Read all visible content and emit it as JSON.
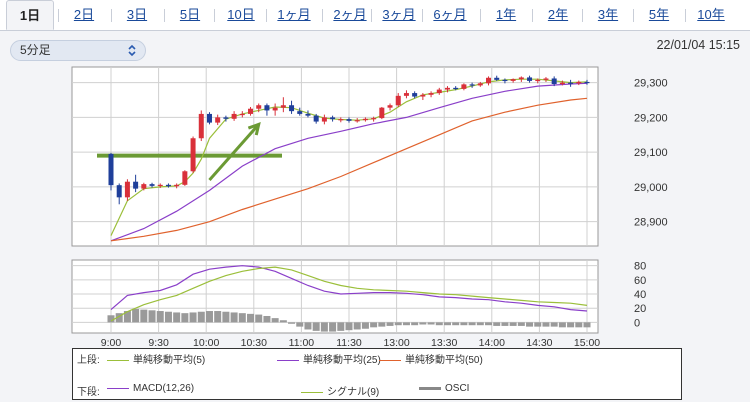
{
  "tabs": [
    {
      "label": "1日",
      "active": true
    },
    {
      "label": "2日"
    },
    {
      "label": "3日"
    },
    {
      "label": "5日"
    },
    {
      "label": "10日"
    },
    {
      "label": "1ヶ月"
    },
    {
      "label": "2ヶ月"
    },
    {
      "label": "3ヶ月"
    },
    {
      "label": "6ヶ月"
    },
    {
      "label": "1年"
    },
    {
      "label": "2年"
    },
    {
      "label": "3年"
    },
    {
      "label": "5年"
    },
    {
      "label": "10年"
    }
  ],
  "interval_select": {
    "value": "5分足",
    "icon": "updown-chevron-icon"
  },
  "timestamp": "22/01/04 15:15",
  "legend": {
    "upper_label": "上段:",
    "lower_label": "下段:",
    "upper_items": [
      {
        "name": "単純移動平均(5)",
        "color": "#9bbf3a"
      },
      {
        "name": "単純移動平均(25)",
        "color": "#8a3fc9"
      },
      {
        "name": "単純移動平均(50)",
        "color": "#e0622d"
      }
    ],
    "lower_items": [
      {
        "name": "MACD(12,26)",
        "color": "#8a3fc9"
      },
      {
        "name": "シグナル(9)",
        "color": "#9bbf3a"
      },
      {
        "name": "OSCI",
        "color": "#888888"
      }
    ]
  },
  "colors": {
    "up": "#d9303a",
    "down": "#1f3f9a",
    "grid": "#cccccc",
    "annotation": "#6b9a34"
  },
  "chart_data": [
    {
      "type": "candlestick",
      "x_ticks": [
        "9:00",
        "9:30",
        "10:00",
        "10:30",
        "11:00",
        "11:30",
        "13:00",
        "13:30",
        "14:00",
        "14:30",
        "15:00"
      ],
      "y_ticks": [
        28900,
        29000,
        29100,
        29200,
        29300
      ],
      "ylim": [
        28830,
        29345
      ],
      "candles": [
        [
          29095,
          29098,
          28990,
          29005
        ],
        [
          29005,
          29010,
          28950,
          28970
        ],
        [
          28970,
          29022,
          28960,
          29015
        ],
        [
          29015,
          29035,
          28985,
          28995
        ],
        [
          28995,
          29012,
          28990,
          29008
        ],
        [
          29008,
          29012,
          28998,
          29003
        ],
        [
          29003,
          29010,
          28997,
          29006
        ],
        [
          29006,
          29010,
          28998,
          29002
        ],
        [
          29002,
          29010,
          28996,
          29006
        ],
        [
          29006,
          29048,
          29003,
          29045
        ],
        [
          29045,
          29145,
          29040,
          29140
        ],
        [
          29140,
          29220,
          29132,
          29210
        ],
        [
          29210,
          29215,
          29180,
          29185
        ],
        [
          29185,
          29208,
          29178,
          29200
        ],
        [
          29200,
          29205,
          29188,
          29196
        ],
        [
          29196,
          29218,
          29190,
          29210
        ],
        [
          29210,
          29218,
          29200,
          29210
        ],
        [
          29210,
          29230,
          29205,
          29225
        ],
        [
          29225,
          29240,
          29215,
          29235
        ],
        [
          29235,
          29240,
          29205,
          29220
        ],
        [
          29220,
          29240,
          29205,
          29228
        ],
        [
          29228,
          29258,
          29215,
          29235
        ],
        [
          29235,
          29248,
          29210,
          29218
        ],
        [
          29218,
          29228,
          29205,
          29210
        ],
        [
          29210,
          29220,
          29200,
          29205
        ],
        [
          29205,
          29210,
          29182,
          29188
        ],
        [
          29188,
          29208,
          29180,
          29200
        ],
        [
          29200,
          29205,
          29188,
          29195
        ],
        [
          29195,
          29200,
          29186,
          29195
        ],
        [
          29195,
          29200,
          29185,
          29190
        ],
        [
          29190,
          29198,
          29185,
          29192
        ],
        [
          29192,
          29200,
          29188,
          29196
        ],
        [
          29196,
          29202,
          29188,
          29198
        ],
        [
          29198,
          29230,
          29195,
          29228
        ],
        [
          29228,
          29240,
          29220,
          29235
        ],
        [
          29235,
          29270,
          29230,
          29262
        ],
        [
          29262,
          29278,
          29255,
          29270
        ],
        [
          29270,
          29275,
          29255,
          29260
        ],
        [
          29260,
          29270,
          29250,
          29265
        ],
        [
          29265,
          29275,
          29258,
          29270
        ],
        [
          29270,
          29285,
          29265,
          29280
        ],
        [
          29280,
          29290,
          29272,
          29285
        ],
        [
          29285,
          29290,
          29278,
          29282
        ],
        [
          29282,
          29298,
          29278,
          29295
        ],
        [
          29295,
          29300,
          29285,
          29292
        ],
        [
          29292,
          29302,
          29288,
          29298
        ],
        [
          29298,
          29318,
          29292,
          29314
        ],
        [
          29314,
          29320,
          29305,
          29308
        ],
        [
          29308,
          29312,
          29298,
          29305
        ],
        [
          29305,
          29312,
          29300,
          29310
        ],
        [
          29310,
          29318,
          29302,
          29315
        ],
        [
          29315,
          29320,
          29300,
          29305
        ],
        [
          29305,
          29312,
          29298,
          29308
        ],
        [
          29308,
          29316,
          29302,
          29312
        ],
        [
          29312,
          29318,
          29290,
          29296
        ],
        [
          29296,
          29306,
          29292,
          29300
        ],
        [
          29300,
          29308,
          29288,
          29298
        ],
        [
          29298,
          29306,
          29293,
          29302
        ],
        [
          29302,
          29308,
          29294,
          29300
        ]
      ],
      "series": [
        {
          "name": "単純移動平均(5)",
          "x": [
            0,
            2,
            4,
            6,
            8,
            9,
            10,
            11,
            12,
            14,
            16,
            18,
            20,
            22,
            24,
            26,
            28,
            30,
            32,
            34,
            36,
            38,
            40,
            42,
            44,
            46,
            48,
            50,
            52,
            54,
            56,
            58
          ],
          "values": [
            28860,
            28960,
            28995,
            29000,
            29003,
            29015,
            29040,
            29080,
            29140,
            29195,
            29210,
            29220,
            29230,
            29228,
            29212,
            29198,
            29194,
            29192,
            29196,
            29215,
            29245,
            29265,
            29272,
            29280,
            29290,
            29302,
            29308,
            29310,
            29310,
            29305,
            29300,
            29302
          ]
        },
        {
          "name": "単純移動平均(25)",
          "x": [
            0,
            4,
            8,
            12,
            16,
            20,
            24,
            28,
            32,
            36,
            40,
            44,
            48,
            52,
            56,
            58
          ],
          "values": [
            28845,
            28880,
            28930,
            28990,
            29060,
            29110,
            29140,
            29160,
            29182,
            29200,
            29228,
            29255,
            29275,
            29290,
            29296,
            29298
          ]
        },
        {
          "name": "単純移動平均(50)",
          "x": [
            0,
            4,
            8,
            12,
            16,
            20,
            24,
            28,
            32,
            36,
            40,
            44,
            48,
            52,
            56,
            58
          ],
          "values": [
            28845,
            28858,
            28875,
            28900,
            28935,
            28965,
            28995,
            29030,
            29070,
            29110,
            29150,
            29190,
            29215,
            29235,
            29250,
            29255
          ]
        }
      ],
      "annotation": {
        "level": 29090,
        "arrow_from": [
          12,
          29020
        ],
        "arrow_to": [
          18,
          29180
        ]
      }
    },
    {
      "type": "line+bar",
      "y_ticks": [
        0,
        20,
        40,
        60,
        80
      ],
      "ylim": [
        -15,
        88
      ],
      "series": [
        {
          "name": "MACD(12,26)",
          "x": [
            0,
            2,
            4,
            6,
            8,
            10,
            12,
            14,
            16,
            18,
            20,
            22,
            24,
            26,
            28,
            30,
            32,
            34,
            36,
            38,
            40,
            42,
            44,
            46,
            48,
            50,
            52,
            54,
            56,
            58
          ],
          "values": [
            18,
            38,
            42,
            45,
            53,
            68,
            75,
            78,
            80,
            78,
            72,
            62,
            52,
            44,
            40,
            41,
            42,
            42,
            41,
            39,
            36,
            35,
            33,
            32,
            29,
            27,
            24,
            22,
            18,
            16
          ]
        },
        {
          "name": "シグナル(9)",
          "x": [
            0,
            2,
            4,
            6,
            8,
            10,
            12,
            14,
            16,
            18,
            20,
            22,
            24,
            26,
            28,
            30,
            32,
            34,
            36,
            38,
            40,
            42,
            44,
            46,
            48,
            50,
            52,
            54,
            56,
            58
          ],
          "values": [
            2,
            15,
            25,
            32,
            38,
            48,
            58,
            66,
            72,
            76,
            78,
            74,
            66,
            58,
            52,
            48,
            46,
            45,
            44,
            42,
            40,
            39,
            37,
            35,
            33,
            31,
            29,
            28,
            27,
            24
          ]
        },
        {
          "name": "OSCI",
          "type": "bar",
          "x": [
            0,
            1,
            2,
            3,
            4,
            5,
            6,
            7,
            8,
            9,
            10,
            11,
            12,
            13,
            14,
            15,
            16,
            17,
            18,
            19,
            20,
            21,
            22,
            23,
            24,
            25,
            26,
            27,
            28,
            29,
            30,
            31,
            32,
            33,
            34,
            35,
            36,
            37,
            38,
            39,
            40,
            41,
            42,
            43,
            44,
            45,
            46,
            47,
            48,
            49,
            50,
            51,
            52,
            53,
            54,
            55,
            56,
            57,
            58
          ],
          "values": [
            10,
            13,
            16,
            19,
            18,
            17,
            16,
            15,
            14,
            13,
            14,
            15,
            16,
            16,
            15,
            14,
            13,
            12,
            11,
            9,
            6,
            3,
            -2,
            -6,
            -10,
            -12,
            -13,
            -13,
            -12,
            -11,
            -10,
            -9,
            -7,
            -6,
            -5,
            -4,
            -4,
            -4,
            -3,
            -3,
            -4,
            -4,
            -4,
            -4,
            -4,
            -4,
            -4,
            -5,
            -5,
            -5,
            -5,
            -6,
            -6,
            -6,
            -6,
            -7,
            -7,
            -7,
            -7
          ]
        }
      ]
    }
  ]
}
